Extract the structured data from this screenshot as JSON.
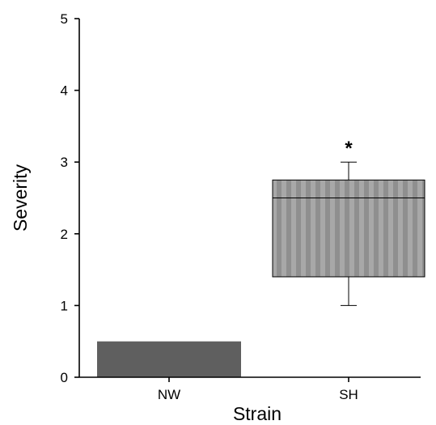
{
  "chart_data": {
    "type": "box",
    "xlabel": "Strain",
    "ylabel": "Severity",
    "ylim": [
      0,
      5
    ],
    "yticks": [
      "0",
      "1",
      "2",
      "3",
      "4",
      "5"
    ],
    "categories": [
      "NW",
      "SH"
    ],
    "boxes": [
      {
        "category": "NW",
        "min": 0,
        "q1": 0,
        "median": 0,
        "q3": 0.5,
        "max": 0.5
      },
      {
        "category": "SH",
        "min": 1.0,
        "q1": 1.4,
        "median": 2.5,
        "q3": 2.75,
        "max": 3.0,
        "annotation": "*"
      }
    ],
    "colors": {
      "NW": "#5f5f5f",
      "SH": "#9b9b9b"
    },
    "grid": false
  }
}
